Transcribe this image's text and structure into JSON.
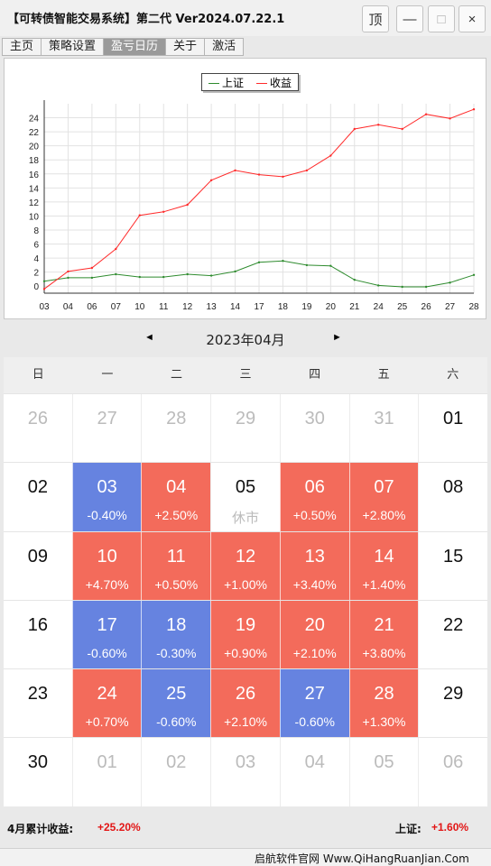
{
  "window": {
    "title": "【可转债智能交易系统】第二代 Ver2024.07.22.1",
    "buttons": {
      "top": "顶",
      "minimize": "—",
      "maximize": "□",
      "close": "×"
    }
  },
  "tabs": [
    "主页",
    "策略设置",
    "盈亏日历",
    "关于",
    "激活"
  ],
  "active_tab": 2,
  "chart_data": {
    "type": "line",
    "x": [
      "03",
      "04",
      "06",
      "07",
      "10",
      "11",
      "12",
      "13",
      "14",
      "17",
      "18",
      "19",
      "20",
      "21",
      "24",
      "25",
      "26",
      "27",
      "28"
    ],
    "series": [
      {
        "name": "上证",
        "color": "#2e8b2e",
        "values": [
          0.7,
          1.2,
          1.2,
          1.7,
          1.3,
          1.3,
          1.7,
          1.5,
          2.1,
          3.4,
          3.6,
          3.0,
          2.9,
          0.9,
          0.1,
          -0.1,
          -0.1,
          0.5,
          1.6
        ]
      },
      {
        "name": "收益",
        "color": "#ff2a2a",
        "values": [
          -0.4,
          2.1,
          2.6,
          5.3,
          10.1,
          10.6,
          11.6,
          15.1,
          16.5,
          15.9,
          15.6,
          16.5,
          18.6,
          22.4,
          23.0,
          22.4,
          24.5,
          23.9,
          25.2
        ]
      }
    ],
    "ylim": [
      -1,
      26
    ],
    "yticks": [
      0,
      2,
      4,
      6,
      8,
      10,
      12,
      14,
      16,
      18,
      20,
      22,
      24
    ],
    "grid": true,
    "legend": "top-center"
  },
  "calendar": {
    "month_label": "2023年04月",
    "prev": "◄",
    "next": "►",
    "weekdays": [
      "日",
      "一",
      "二",
      "三",
      "四",
      "五",
      "六"
    ],
    "weeks": [
      [
        {
          "d": "26",
          "s": "out"
        },
        {
          "d": "27",
          "s": "out"
        },
        {
          "d": "28",
          "s": "out"
        },
        {
          "d": "29",
          "s": "out"
        },
        {
          "d": "30",
          "s": "out"
        },
        {
          "d": "31",
          "s": "out"
        },
        {
          "d": "01",
          "s": "none"
        }
      ],
      [
        {
          "d": "02",
          "s": "none"
        },
        {
          "d": "03",
          "s": "down",
          "p": "-0.40%"
        },
        {
          "d": "04",
          "s": "up",
          "p": "+2.50%"
        },
        {
          "d": "05",
          "s": "none",
          "n": "休市"
        },
        {
          "d": "06",
          "s": "up",
          "p": "+0.50%"
        },
        {
          "d": "07",
          "s": "up",
          "p": "+2.80%"
        },
        {
          "d": "08",
          "s": "none"
        }
      ],
      [
        {
          "d": "09",
          "s": "none"
        },
        {
          "d": "10",
          "s": "up",
          "p": "+4.70%"
        },
        {
          "d": "11",
          "s": "up",
          "p": "+0.50%"
        },
        {
          "d": "12",
          "s": "up",
          "p": "+1.00%"
        },
        {
          "d": "13",
          "s": "up",
          "p": "+3.40%"
        },
        {
          "d": "14",
          "s": "up",
          "p": "+1.40%"
        },
        {
          "d": "15",
          "s": "none"
        }
      ],
      [
        {
          "d": "16",
          "s": "none"
        },
        {
          "d": "17",
          "s": "down",
          "p": "-0.60%"
        },
        {
          "d": "18",
          "s": "down",
          "p": "-0.30%"
        },
        {
          "d": "19",
          "s": "up",
          "p": "+0.90%"
        },
        {
          "d": "20",
          "s": "up",
          "p": "+2.10%"
        },
        {
          "d": "21",
          "s": "up",
          "p": "+3.80%"
        },
        {
          "d": "22",
          "s": "none"
        }
      ],
      [
        {
          "d": "23",
          "s": "none"
        },
        {
          "d": "24",
          "s": "up",
          "p": "+0.70%"
        },
        {
          "d": "25",
          "s": "down",
          "p": "-0.60%"
        },
        {
          "d": "26",
          "s": "up",
          "p": "+2.10%"
        },
        {
          "d": "27",
          "s": "down",
          "p": "-0.60%"
        },
        {
          "d": "28",
          "s": "up",
          "p": "+1.30%"
        },
        {
          "d": "29",
          "s": "none"
        }
      ],
      [
        {
          "d": "30",
          "s": "none"
        },
        {
          "d": "01",
          "s": "out"
        },
        {
          "d": "02",
          "s": "out"
        },
        {
          "d": "03",
          "s": "out"
        },
        {
          "d": "04",
          "s": "out"
        },
        {
          "d": "05",
          "s": "out"
        },
        {
          "d": "06",
          "s": "out"
        }
      ]
    ]
  },
  "summary": {
    "month_label": "4月累计收益:",
    "month_value": "+25.20%",
    "index_label": "上证:",
    "index_value": "+1.60%"
  },
  "status": {
    "text": "启航软件官网 Www.QiHangRuanJian.Com"
  },
  "colors": {
    "up": "#f36b5b",
    "down": "#6683e0",
    "positive_text": "#e21515"
  }
}
